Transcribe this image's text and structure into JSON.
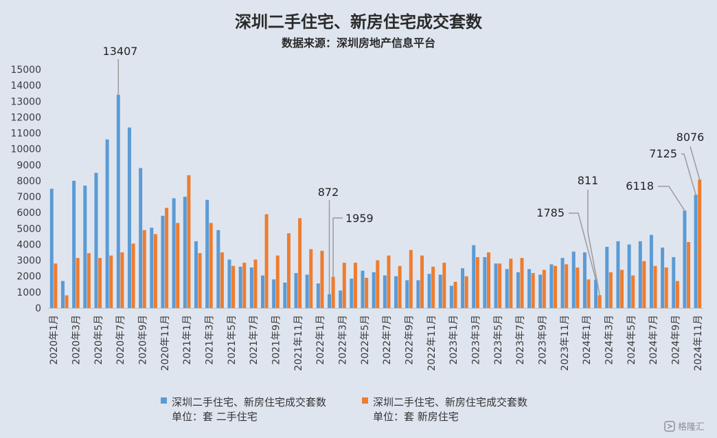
{
  "chart_data": {
    "type": "bar",
    "title": "深圳二手住宅、新房住宅成交套数",
    "subtitle": "数据来源：深圳房地产信息平台",
    "ylim": [
      0,
      15000
    ],
    "yticks": [
      0,
      1000,
      2000,
      3000,
      4000,
      5000,
      6000,
      7000,
      8000,
      9000,
      10000,
      11000,
      12000,
      13000,
      14000,
      15000
    ],
    "grid": false,
    "legend_position": "bottom",
    "categories": [
      "2020年1月",
      "2020年2月",
      "2020年3月",
      "2020年4月",
      "2020年5月",
      "2020年6月",
      "2020年7月",
      "2020年8月",
      "2020年9月",
      "2020年10月",
      "2020年11月",
      "2020年12月",
      "2021年1月",
      "2021年2月",
      "2021年3月",
      "2021年4月",
      "2021年5月",
      "2021年6月",
      "2021年7月",
      "2021年8月",
      "2021年9月",
      "2021年10月",
      "2021年11月",
      "2021年12月",
      "2022年1月",
      "2022年2月",
      "2022年3月",
      "2022年4月",
      "2022年5月",
      "2022年6月",
      "2022年7月",
      "2022年8月",
      "2022年9月",
      "2022年10月",
      "2022年11月",
      "2022年12月",
      "2023年1月",
      "2023年2月",
      "2023年3月",
      "2023年4月",
      "2023年5月",
      "2023年6月",
      "2023年7月",
      "2023年8月",
      "2023年9月",
      "2023年10月",
      "2023年11月",
      "2023年12月",
      "2024年1月",
      "2024年2月",
      "2024年3月",
      "2024年4月",
      "2024年5月",
      "2024年6月",
      "2024年7月",
      "2024年8月",
      "2024年9月",
      "2024年10月",
      "2024年11月"
    ],
    "visible_tick_labels": [
      "2020年1月",
      "2020年3月",
      "2020年5月",
      "2020年7月",
      "2020年9月",
      "2020年11月",
      "2021年1月",
      "2021年3月",
      "2021年5月",
      "2021年7月",
      "2021年9月",
      "2021年11月",
      "2022年1月",
      "2022年3月",
      "2022年5月",
      "2022年7月",
      "2022年9月",
      "2022年11月",
      "2023年1月",
      "2023年3月",
      "2023年5月",
      "2023年7月",
      "2023年9月",
      "2023年11月",
      "2024年1月",
      "2024年3月",
      "2024年5月",
      "2024年7月",
      "2024年9月",
      "2024年11月"
    ],
    "series": [
      {
        "name": "深圳二手住宅、新房住宅成交套数",
        "unit_line": "单位：套 二手住宅",
        "color": "#5b9bd5",
        "values": [
          7500,
          1700,
          8000,
          7700,
          8500,
          10600,
          13407,
          11350,
          8800,
          5050,
          5800,
          6900,
          7000,
          4200,
          6800,
          4900,
          3050,
          2600,
          2550,
          2050,
          1800,
          1600,
          2200,
          2100,
          1550,
          872,
          1100,
          1850,
          2350,
          2250,
          2050,
          2000,
          1750,
          1750,
          2150,
          2100,
          1400,
          2500,
          3950,
          3200,
          2800,
          2450,
          2250,
          2450,
          2100,
          2750,
          3150,
          3550,
          3500,
          1785,
          3850,
          4200,
          4000,
          4200,
          4600,
          3800,
          3200,
          6118,
          7125
        ]
      },
      {
        "name": "深圳二手住宅、新房住宅成交套数",
        "unit_line": "单位：套 新房住宅",
        "color": "#ed7d31",
        "values": [
          2800,
          800,
          3150,
          3450,
          3150,
          3300,
          3500,
          4050,
          4900,
          4650,
          6300,
          5350,
          8350,
          3450,
          5350,
          3500,
          2650,
          2850,
          3050,
          5900,
          3300,
          4700,
          5650,
          3700,
          3600,
          1959,
          2850,
          2850,
          1900,
          3000,
          3300,
          2650,
          3650,
          3300,
          2600,
          2850,
          1650,
          2000,
          3200,
          3500,
          2800,
          3100,
          3150,
          2200,
          2400,
          2650,
          2750,
          2550,
          1800,
          811,
          2250,
          2400,
          2050,
          2950,
          2650,
          2550,
          1700,
          4150,
          8076
        ]
      }
    ],
    "annotations": [
      {
        "series": 0,
        "category": "2020年7月",
        "text": "13407"
      },
      {
        "series": 0,
        "category": "2022年2月",
        "text": "872"
      },
      {
        "series": 1,
        "category": "2022年2月",
        "text": "1959"
      },
      {
        "series": 0,
        "category": "2024年2月",
        "text": "1785"
      },
      {
        "series": 1,
        "category": "2024年2月",
        "text": "811"
      },
      {
        "series": 0,
        "category": "2024年10月",
        "text": "6118"
      },
      {
        "series": 0,
        "category": "2024年11月",
        "text": "7125"
      },
      {
        "series": 1,
        "category": "2024年11月",
        "text": "8076"
      }
    ]
  },
  "watermark": {
    "text": "格隆汇",
    "icon": "gelonghui-logo-icon"
  }
}
